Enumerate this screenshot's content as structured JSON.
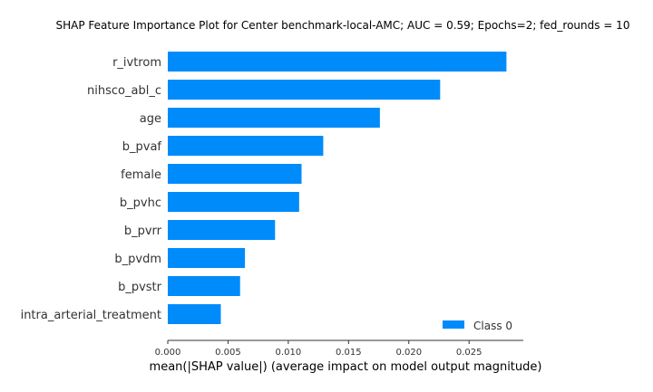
{
  "chart_data": {
    "type": "bar",
    "orientation": "horizontal",
    "title": "SHAP Feature Importance Plot for Center benchmark-local-AMC; AUC = 0.59; Epochs=2; fed_rounds = 10",
    "xlabel": "mean(|SHAP value|) (average impact on model output magnitude)",
    "ylabel": "",
    "categories": [
      "r_ivtrom",
      "nihsco_abl_c",
      "age",
      "b_pvaf",
      "female",
      "b_pvhc",
      "b_pvrr",
      "b_pvdm",
      "b_pvstr",
      "intra_arterial_treatment"
    ],
    "series": [
      {
        "name": "Class 0",
        "values": [
          0.0281,
          0.0226,
          0.0176,
          0.0129,
          0.0111,
          0.0109,
          0.0089,
          0.0064,
          0.006,
          0.0044
        ],
        "color": "#008bfb"
      }
    ],
    "xlim": [
      0,
      0.0295
    ],
    "xticks": [
      0.0,
      0.005,
      0.01,
      0.015,
      0.02,
      0.025
    ],
    "xtick_labels": [
      "0.000",
      "0.005",
      "0.010",
      "0.015",
      "0.020",
      "0.025"
    ],
    "grid": false,
    "legend_position": "bottom-right"
  }
}
